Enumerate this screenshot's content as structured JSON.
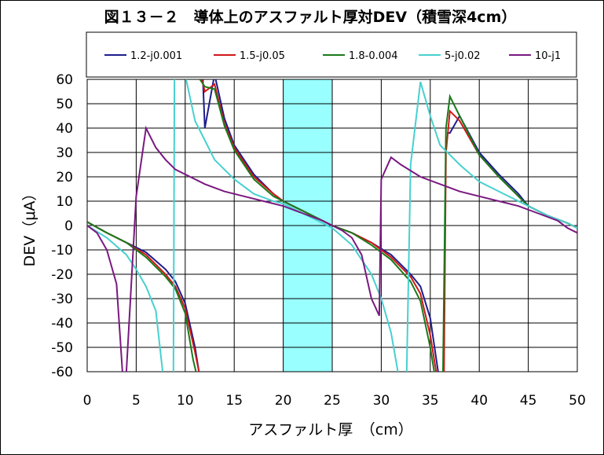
{
  "chart_data": {
    "type": "line",
    "title": "図１３－２　導体上のアスファルト厚対DEV（積雪深4cm）",
    "xlabel": "アスファルト厚　（cm）",
    "ylabel": "DEV（μA）",
    "xlim": [
      0,
      50
    ],
    "ylim": [
      -60,
      60
    ],
    "x_ticks": [
      0,
      5,
      10,
      15,
      20,
      25,
      30,
      35,
      40,
      45,
      50
    ],
    "y_ticks": [
      60,
      50,
      40,
      30,
      20,
      10,
      0,
      -10,
      -20,
      -30,
      -40,
      -50,
      -60
    ],
    "x_tick_labels": [
      "0",
      "5",
      "10",
      "15",
      "20",
      "25",
      "30",
      "35",
      "40",
      "45",
      "50"
    ],
    "y_tick_labels": [
      "60",
      "50",
      "40",
      "30",
      "20",
      "10",
      "0",
      "-10",
      "-20",
      "-30",
      "-40",
      "-50",
      "-60"
    ],
    "grid": true,
    "legend_position": "top",
    "shaded_band": {
      "x_from": 20,
      "x_to": 25,
      "color": "#99ffff"
    },
    "series": [
      {
        "name": "1.2-j0.001",
        "color": "#1c1c8c",
        "points": [
          [
            0,
            1.5
          ],
          [
            2,
            -3
          ],
          [
            4,
            -7
          ],
          [
            6,
            -11
          ],
          [
            8,
            -18
          ],
          [
            9,
            -23
          ],
          [
            10,
            -32
          ],
          [
            11,
            -50
          ],
          [
            11.4,
            -60
          ],
          [
            null,
            null
          ],
          [
            11.8,
            60
          ],
          [
            12,
            40
          ],
          [
            13,
            62
          ],
          [
            14,
            44
          ],
          [
            15,
            33
          ],
          [
            17,
            21
          ],
          [
            19,
            13
          ],
          [
            20,
            10
          ],
          [
            22,
            6
          ],
          [
            24,
            2
          ],
          [
            25,
            0
          ],
          [
            27,
            -3
          ],
          [
            29,
            -7
          ],
          [
            31,
            -12
          ],
          [
            33,
            -20
          ],
          [
            34,
            -25
          ],
          [
            35,
            -38
          ],
          [
            35.8,
            -60
          ],
          [
            null,
            null
          ],
          [
            36.7,
            38
          ],
          [
            37,
            38
          ],
          [
            38,
            45
          ],
          [
            40,
            30
          ],
          [
            42,
            21
          ],
          [
            44,
            13
          ],
          [
            45,
            8
          ],
          [
            47,
            4
          ],
          [
            49,
            1
          ],
          [
            50,
            -1
          ]
        ]
      },
      {
        "name": "1.5-j0.05",
        "color": "#d01818",
        "points": [
          [
            0,
            1.5
          ],
          [
            2,
            -3
          ],
          [
            4,
            -7
          ],
          [
            6,
            -12
          ],
          [
            8,
            -20
          ],
          [
            9,
            -25
          ],
          [
            10,
            -34
          ],
          [
            11,
            -52
          ],
          [
            11.4,
            -60
          ],
          [
            null,
            null
          ],
          [
            11.7,
            60
          ],
          [
            12,
            55
          ],
          [
            13,
            58
          ],
          [
            14,
            42
          ],
          [
            15,
            32
          ],
          [
            17,
            20
          ],
          [
            19,
            13
          ],
          [
            20,
            10
          ],
          [
            22,
            6
          ],
          [
            24,
            2
          ],
          [
            25,
            0
          ],
          [
            27,
            -3
          ],
          [
            29,
            -7
          ],
          [
            31,
            -13
          ],
          [
            33,
            -21
          ],
          [
            34,
            -28
          ],
          [
            35,
            -45
          ],
          [
            35.6,
            -60
          ],
          [
            null,
            null
          ],
          [
            36.4,
            -60
          ],
          [
            36.6,
            30
          ],
          [
            37,
            47
          ],
          [
            38,
            43
          ],
          [
            40,
            29
          ],
          [
            42,
            20
          ],
          [
            44,
            12
          ],
          [
            45,
            8
          ],
          [
            47,
            4
          ],
          [
            49,
            1
          ],
          [
            50,
            -1
          ]
        ]
      },
      {
        "name": "1.8-0.004",
        "color": "#1a7a1a",
        "points": [
          [
            0,
            1.5
          ],
          [
            2,
            -3
          ],
          [
            4,
            -7
          ],
          [
            6,
            -13
          ],
          [
            8,
            -21
          ],
          [
            9,
            -26
          ],
          [
            10,
            -36
          ],
          [
            10.8,
            -55
          ],
          [
            11.1,
            -60
          ],
          [
            null,
            null
          ],
          [
            11.5,
            60
          ],
          [
            12,
            57
          ],
          [
            13,
            56
          ],
          [
            14,
            41
          ],
          [
            15,
            31
          ],
          [
            17,
            19
          ],
          [
            19,
            12
          ],
          [
            20,
            10
          ],
          [
            22,
            6
          ],
          [
            24,
            2
          ],
          [
            25,
            0
          ],
          [
            27,
            -3
          ],
          [
            29,
            -8
          ],
          [
            31,
            -14
          ],
          [
            33,
            -23
          ],
          [
            34,
            -31
          ],
          [
            35,
            -50
          ],
          [
            35.4,
            -60
          ],
          [
            null,
            null
          ],
          [
            36.3,
            -60
          ],
          [
            36.6,
            40
          ],
          [
            37,
            53
          ],
          [
            38,
            45
          ],
          [
            40,
            29
          ],
          [
            42,
            20
          ],
          [
            44,
            12
          ],
          [
            45,
            8
          ],
          [
            47,
            4
          ],
          [
            49,
            1
          ],
          [
            50,
            -1
          ]
        ]
      },
      {
        "name": "5-j0.02",
        "color": "#48d0d0",
        "points": [
          [
            0,
            0
          ],
          [
            2,
            -5
          ],
          [
            4,
            -12
          ],
          [
            5,
            -18
          ],
          [
            6,
            -25
          ],
          [
            7,
            -35
          ],
          [
            7.7,
            -60
          ],
          [
            null,
            null
          ],
          [
            8.8,
            -60
          ],
          [
            8.9,
            60
          ],
          [
            null,
            null
          ],
          [
            10.1,
            60
          ],
          [
            11,
            43
          ],
          [
            12,
            35
          ],
          [
            13,
            27
          ],
          [
            15,
            19
          ],
          [
            17,
            13
          ],
          [
            19,
            10
          ],
          [
            20,
            9
          ],
          [
            22,
            5
          ],
          [
            24,
            1
          ],
          [
            25,
            -1
          ],
          [
            27,
            -8
          ],
          [
            28,
            -14
          ],
          [
            29,
            -20
          ],
          [
            30,
            -30
          ],
          [
            31,
            -44
          ],
          [
            31.7,
            -60
          ],
          [
            null,
            null
          ],
          [
            32.6,
            -60
          ],
          [
            33,
            25
          ],
          [
            34,
            59
          ],
          [
            35,
            45
          ],
          [
            36,
            33
          ],
          [
            37,
            29
          ],
          [
            38,
            25
          ],
          [
            40,
            18
          ],
          [
            42,
            14
          ],
          [
            44,
            10
          ],
          [
            45,
            8
          ],
          [
            47,
            4
          ],
          [
            49,
            1
          ],
          [
            50,
            -1
          ]
        ]
      },
      {
        "name": "10-j1",
        "color": "#7a1880",
        "points": [
          [
            0,
            0
          ],
          [
            1,
            -3
          ],
          [
            2,
            -10
          ],
          [
            3,
            -24
          ],
          [
            3.6,
            -60
          ],
          [
            null,
            null
          ],
          [
            4,
            -60
          ],
          [
            5,
            12
          ],
          [
            6,
            40
          ],
          [
            7,
            32
          ],
          [
            8,
            27
          ],
          [
            9,
            23
          ],
          [
            10,
            21
          ],
          [
            12,
            17
          ],
          [
            14,
            14
          ],
          [
            16,
            12
          ],
          [
            18,
            10
          ],
          [
            20,
            8
          ],
          [
            22,
            5
          ],
          [
            24,
            2
          ],
          [
            25,
            0
          ],
          [
            26,
            -2
          ],
          [
            27,
            -5
          ],
          [
            28,
            -12
          ],
          [
            29,
            -30
          ],
          [
            29.8,
            -37
          ],
          [
            30,
            19
          ],
          [
            31,
            28
          ],
          [
            32,
            25
          ],
          [
            34,
            20
          ],
          [
            36,
            17
          ],
          [
            38,
            14
          ],
          [
            40,
            12
          ],
          [
            42,
            10
          ],
          [
            44,
            8
          ],
          [
            46,
            5
          ],
          [
            48,
            2
          ],
          [
            49,
            -1
          ],
          [
            50,
            -3
          ]
        ]
      }
    ]
  }
}
